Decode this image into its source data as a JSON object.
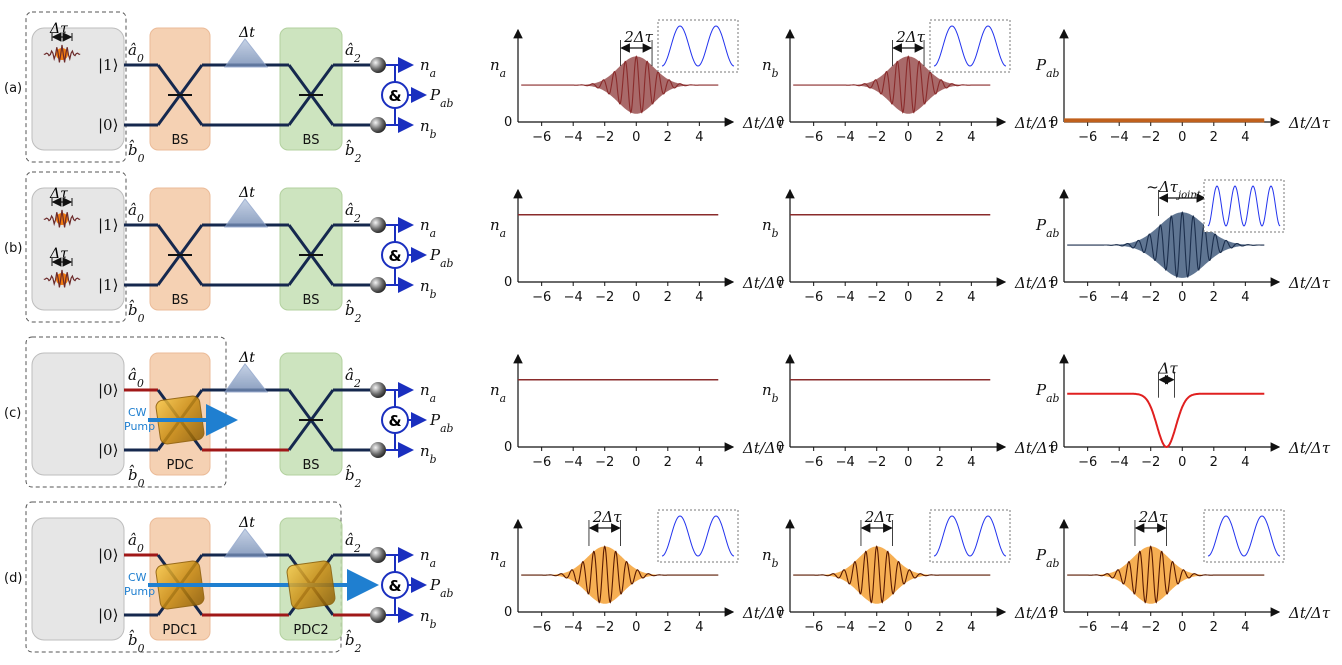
{
  "rows": [
    {
      "label": "(a)",
      "input_top": "|1⟩",
      "input_bottom": "|0⟩",
      "in_a": "â₀",
      "in_b": "b̂₀",
      "elem1": "BS",
      "elem2": "BS",
      "delay": "Δt",
      "out_a": "â₂",
      "out_b": "b̂₂",
      "det_a": "nₐ",
      "det_ab": "Pₐ_b",
      "det_b": "n_b",
      "coinc": "&",
      "pulse_width_top": "Δτ",
      "pulse_width_bottom": "",
      "pump": ""
    },
    {
      "label": "(b)",
      "input_top": "|1⟩",
      "input_bottom": "|1⟩",
      "in_a": "â₀",
      "in_b": "b̂₀",
      "elem1": "BS",
      "elem2": "BS",
      "delay": "Δt",
      "out_a": "â₂",
      "out_b": "b̂₂",
      "det_a": "nₐ",
      "det_ab": "Pₐ_b",
      "det_b": "n_b",
      "coinc": "&",
      "pulse_width_top": "Δτ",
      "pulse_width_bottom": "Δτ",
      "pump": ""
    },
    {
      "label": "(c)",
      "input_top": "|0⟩",
      "input_bottom": "|0⟩",
      "in_a": "â₀",
      "in_b": "b̂₀",
      "elem1": "PDC",
      "elem2": "BS",
      "delay": "Δt",
      "out_a": "â₂",
      "out_b": "b̂₂",
      "det_a": "nₐ",
      "det_ab": "Pₐ_b",
      "det_b": "n_b",
      "coinc": "&",
      "pulse_width_top": "",
      "pulse_width_bottom": "",
      "pump": "CW\nPump"
    },
    {
      "label": "(d)",
      "input_top": "|0⟩",
      "input_bottom": "|0⟩",
      "in_a": "â₀",
      "in_b": "b̂₀",
      "elem1": "PDC1",
      "elem2": "PDC2",
      "delay": "Δt",
      "out_a": "â₂",
      "out_b": "b̂₂",
      "det_a": "nₐ",
      "det_ab": "Pₐ_b",
      "det_b": "n_b",
      "coinc": "&",
      "pulse_width_top": "",
      "pulse_width_bottom": "",
      "pump": "CW\nPump"
    }
  ],
  "axis": {
    "xlabel": "Δt/Δτ",
    "yzero": "0",
    "xticks": [
      -6,
      -4,
      -2,
      0,
      2,
      4
    ],
    "xlim": [
      -7.5,
      5.5
    ]
  },
  "chart_data": [
    {
      "type": "line",
      "row": "a",
      "ylabel": "nₐ",
      "shape": "fringe",
      "center": 0,
      "width": 1.6,
      "baseline": 0.45,
      "amp": 0.35,
      "color": "#8a2b2b",
      "fill": "#a05a5a",
      "annot": "2Δτ",
      "annot_span": [
        -1,
        1
      ],
      "inset": "cos",
      "inset_cycles": 2
    },
    {
      "type": "line",
      "row": "a",
      "ylabel": "n_b",
      "shape": "fringe",
      "center": 0,
      "width": 1.6,
      "baseline": 0.45,
      "amp": 0.35,
      "color": "#8a2b2b",
      "fill": "#a05a5a",
      "annot": "2Δτ",
      "annot_span": [
        -1,
        1
      ],
      "inset": "cos",
      "inset_cycles": 2
    },
    {
      "type": "line",
      "row": "a",
      "ylabel": "Pₐ_b",
      "shape": "flat",
      "baseline": 0.02,
      "color": "#c0601c",
      "annot": "",
      "inset": ""
    },
    {
      "type": "line",
      "row": "b",
      "ylabel": "nₐ",
      "shape": "flat",
      "baseline": 0.82,
      "color": "#8a2b2b",
      "annot": "",
      "inset": ""
    },
    {
      "type": "line",
      "row": "b",
      "ylabel": "n_b",
      "shape": "flat",
      "baseline": 0.82,
      "color": "#8a2b2b",
      "annot": "",
      "inset": ""
    },
    {
      "type": "line",
      "row": "b",
      "ylabel": "Pₐ_b",
      "shape": "fringe",
      "center": 0,
      "width": 2.0,
      "baseline": 0.45,
      "amp": 0.4,
      "color": "#1c2f4d",
      "fill": "#4e6686",
      "annot": "~Δτ_joint",
      "annot_span": [
        -1.5,
        1.5
      ],
      "inset": "cos",
      "inset_cycles": 4
    },
    {
      "type": "line",
      "row": "c",
      "ylabel": "nₐ",
      "shape": "flat",
      "baseline": 0.82,
      "color": "#8a2b2b",
      "annot": "",
      "inset": ""
    },
    {
      "type": "line",
      "row": "c",
      "ylabel": "n_b",
      "shape": "flat",
      "baseline": 0.82,
      "color": "#8a2b2b",
      "annot": "",
      "inset": ""
    },
    {
      "type": "line",
      "row": "c",
      "ylabel": "Pₐ_b",
      "shape": "dip",
      "center": -1,
      "width": 0.6,
      "baseline": 0.65,
      "color": "#e02020",
      "annot": "Δτ",
      "annot_span": [
        -1.5,
        -0.5
      ],
      "inset": ""
    },
    {
      "type": "line",
      "row": "d",
      "ylabel": "nₐ",
      "shape": "fringe",
      "center": -2,
      "width": 1.6,
      "baseline": 0.45,
      "amp": 0.35,
      "color": "#5a1a00",
      "fill": "#f5a640",
      "annot": "2Δτ",
      "annot_span": [
        -3,
        -1
      ],
      "inset": "cos",
      "inset_cycles": 2
    },
    {
      "type": "line",
      "row": "d",
      "ylabel": "n_b",
      "shape": "fringe",
      "center": -2,
      "width": 1.6,
      "baseline": 0.45,
      "amp": 0.35,
      "color": "#5a1a00",
      "fill": "#f5a640",
      "annot": "2Δτ",
      "annot_span": [
        -3,
        -1
      ],
      "inset": "cos",
      "inset_cycles": 2
    },
    {
      "type": "line",
      "row": "d",
      "ylabel": "Pₐ_b",
      "shape": "fringe",
      "center": -2,
      "width": 1.6,
      "baseline": 0.45,
      "amp": 0.35,
      "color": "#5a1a00",
      "fill": "#f5a640",
      "annot": "2Δτ",
      "annot_span": [
        -3,
        -1
      ],
      "inset": "cos",
      "inset_cycles": 2
    }
  ]
}
